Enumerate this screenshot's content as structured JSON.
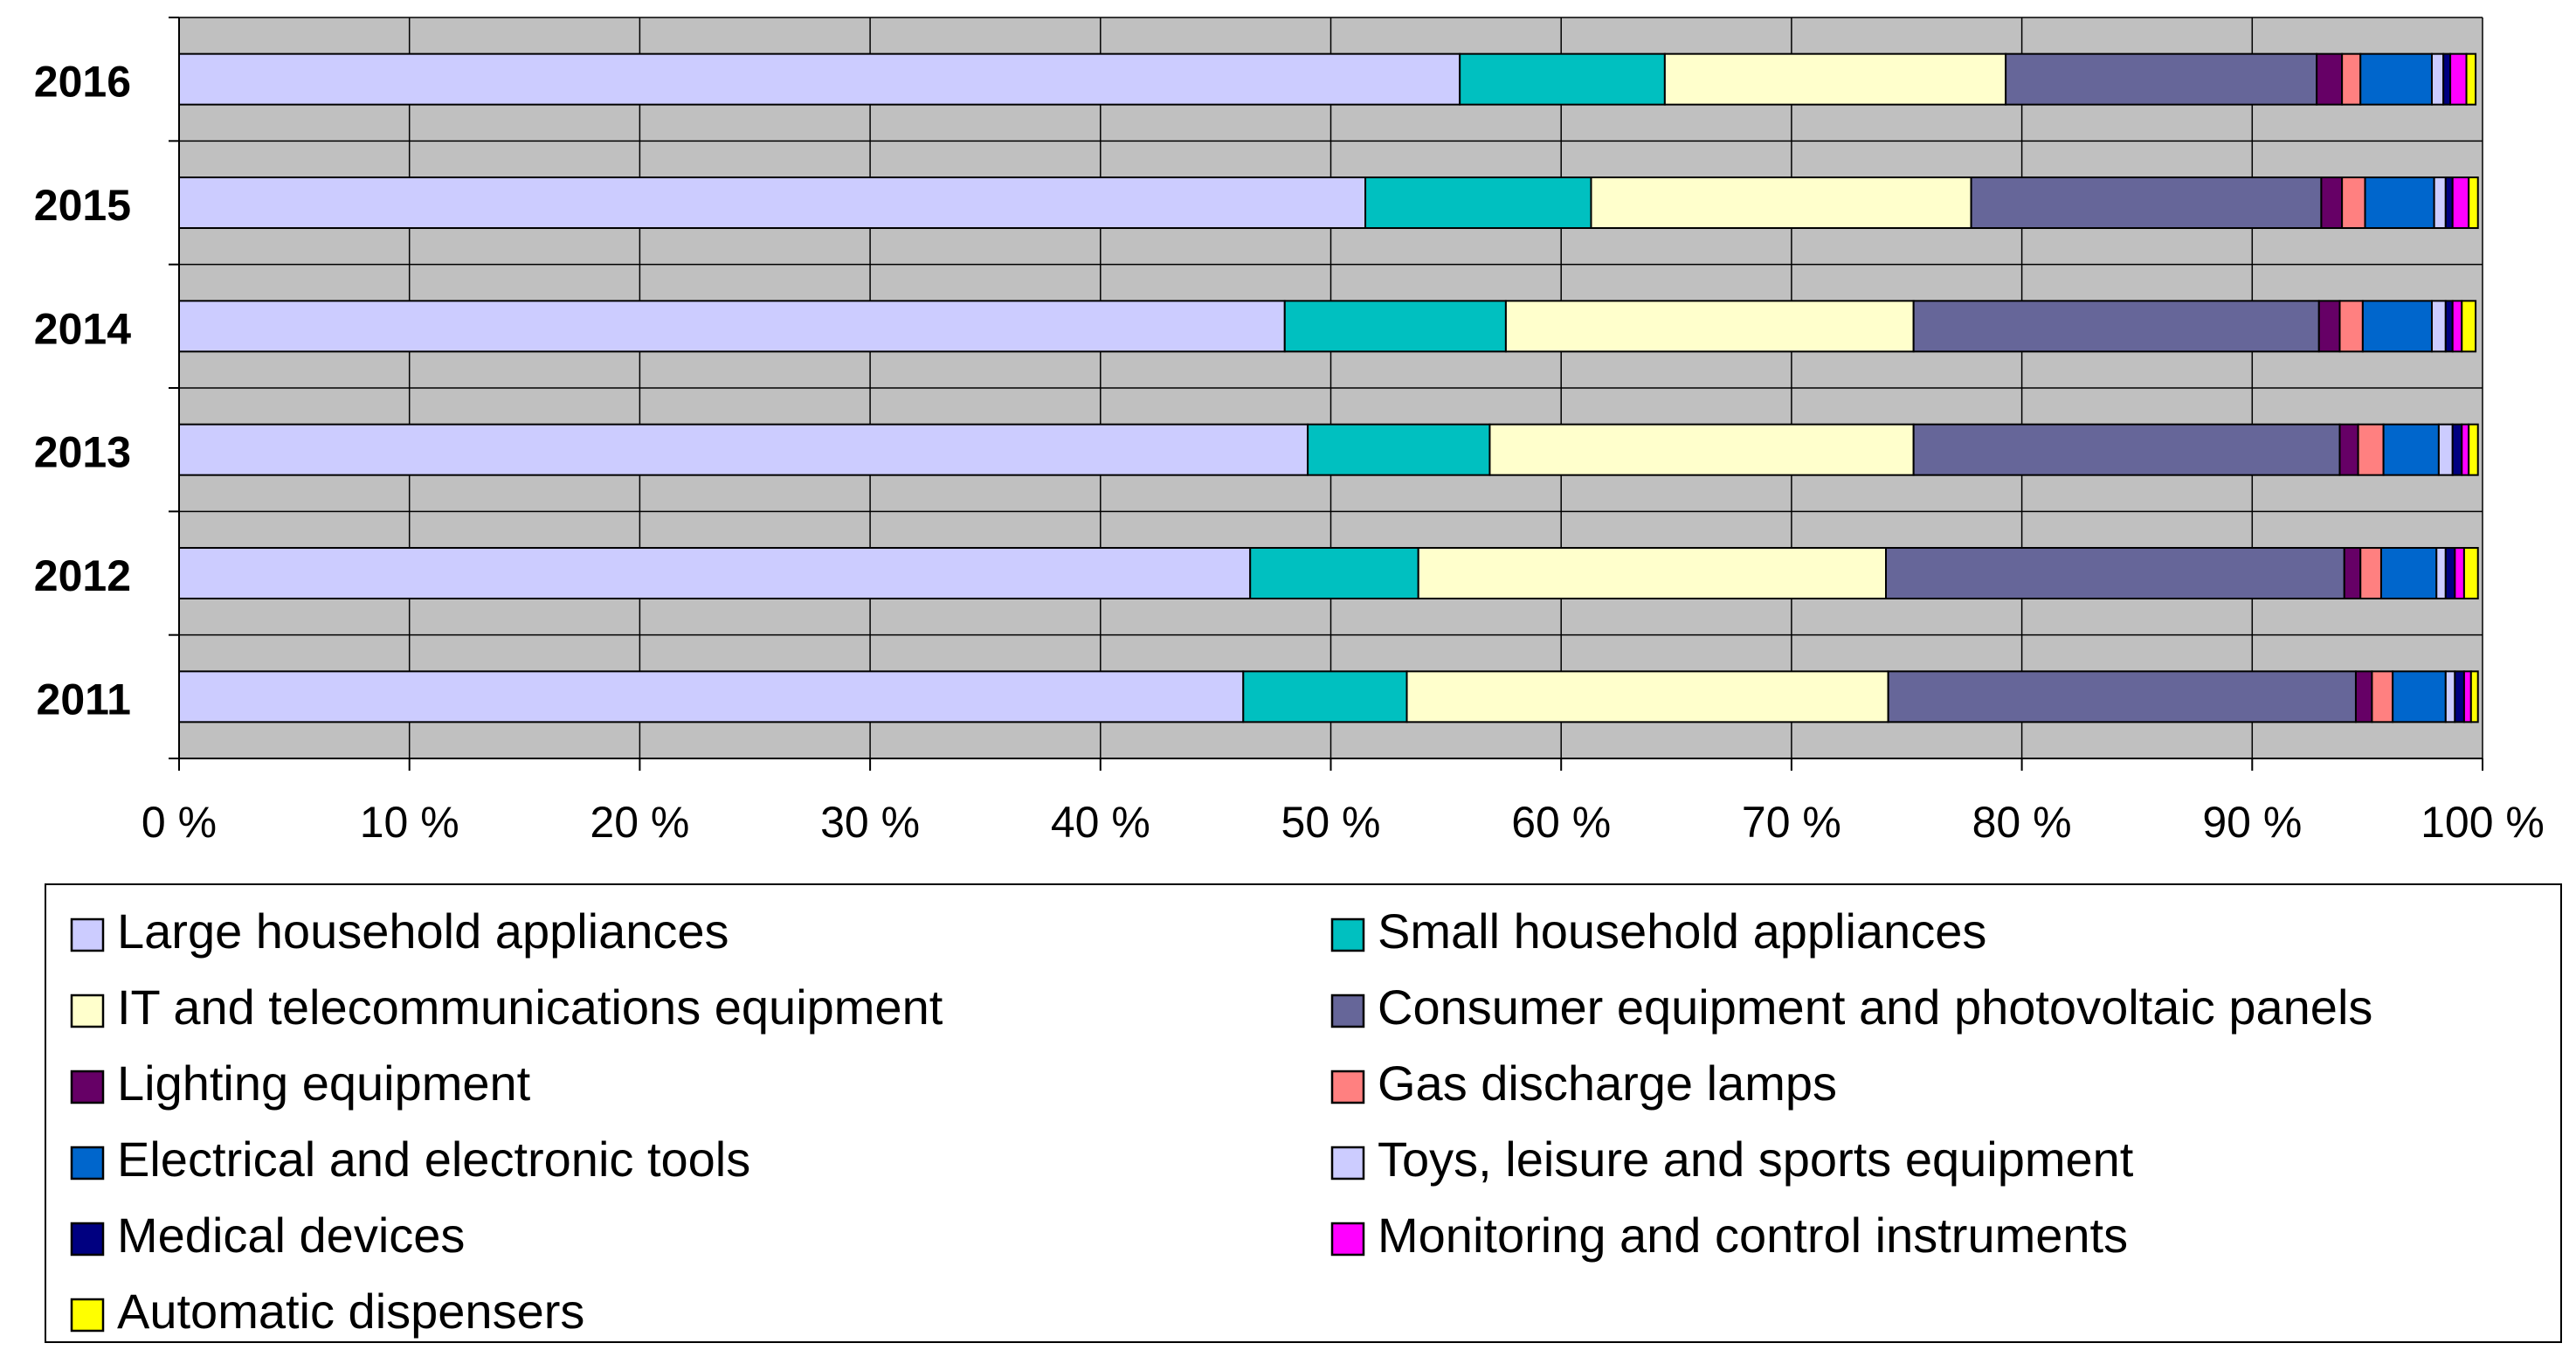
{
  "chart_data": {
    "type": "bar",
    "orientation": "horizontal",
    "stacked": "percent",
    "title": "",
    "xlabel": "",
    "ylabel": "",
    "xlim": [
      0,
      100
    ],
    "grid": true,
    "legend_position": "bottom",
    "categories": [
      "2016",
      "2015",
      "2014",
      "2013",
      "2012",
      "2011"
    ],
    "x_ticks": [
      "0 %",
      "10 %",
      "20 %",
      "30 %",
      "40 %",
      "50 %",
      "60 %",
      "70 %",
      "80 %",
      "90 %",
      "100 %"
    ],
    "series": [
      {
        "name": "Large household appliances",
        "color": "#ccccff",
        "values": [
          55.6,
          51.5,
          48.0,
          49.0,
          46.5,
          46.2
        ]
      },
      {
        "name": "Small household appliances",
        "color": "#00c0c0",
        "values": [
          8.9,
          9.8,
          9.6,
          7.9,
          7.3,
          7.1
        ]
      },
      {
        "name": "IT and telecommunications equipment",
        "color": "#ffffcc",
        "values": [
          14.8,
          16.5,
          17.7,
          18.4,
          20.3,
          20.9
        ]
      },
      {
        "name": "Consumer equipment and photovoltaic panels",
        "color": "#666699",
        "values": [
          13.5,
          15.2,
          17.6,
          18.5,
          19.9,
          20.3
        ]
      },
      {
        "name": "Lighting equipment",
        "color": "#660066",
        "values": [
          1.1,
          0.9,
          0.9,
          0.8,
          0.7,
          0.7
        ]
      },
      {
        "name": "Gas discharge lamps",
        "color": "#ff8080",
        "values": [
          0.8,
          1.0,
          1.0,
          1.1,
          0.9,
          0.9
        ]
      },
      {
        "name": "Electrical and electronic tools",
        "color": "#0066cc",
        "values": [
          3.1,
          3.0,
          3.0,
          2.4,
          2.4,
          2.3
        ]
      },
      {
        "name": "Toys, leisure and sports equipment",
        "color": "#ccccff",
        "values": [
          0.5,
          0.5,
          0.6,
          0.6,
          0.4,
          0.4
        ]
      },
      {
        "name": "Medical devices",
        "color": "#000080",
        "values": [
          0.3,
          0.3,
          0.3,
          0.4,
          0.4,
          0.4
        ]
      },
      {
        "name": "Monitoring and control instruments",
        "color": "#ff00ff",
        "values": [
          0.7,
          0.7,
          0.4,
          0.3,
          0.4,
          0.3
        ]
      },
      {
        "name": "Automatic dispensers",
        "color": "#ffff00",
        "values": [
          0.4,
          0.4,
          0.6,
          0.4,
          0.6,
          0.3
        ]
      }
    ],
    "colors": {
      "plot_background": "#c0c0c0",
      "gridline": "#000000",
      "bar_outline": "#000000",
      "page_background": "#ffffff"
    }
  }
}
